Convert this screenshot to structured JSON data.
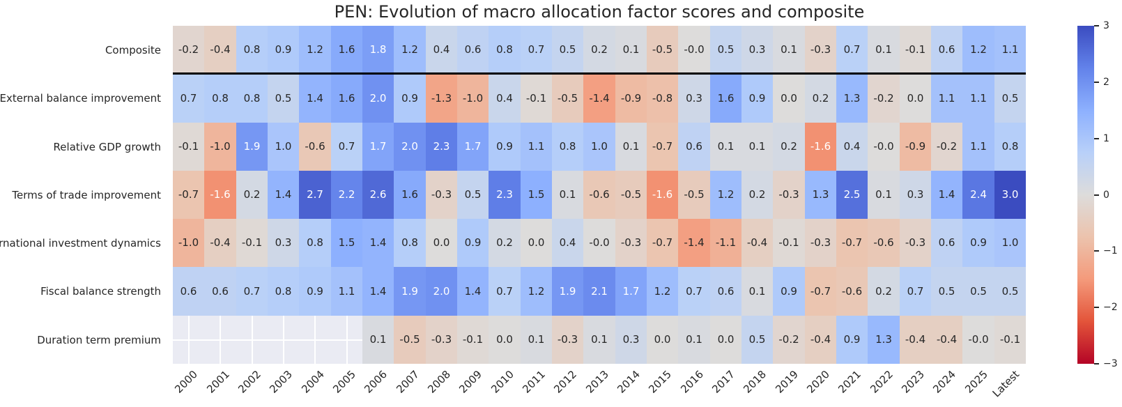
{
  "title": "PEN: Evolution of macro allocation factor scores and composite",
  "chart_data": {
    "type": "heatmap",
    "title": "PEN: Evolution of macro allocation factor scores and composite",
    "xlabel": "",
    "ylabel": "",
    "colormap": "coolwarm reversed (blue = positive, red = negative)",
    "vmin": -3,
    "vmax": 3,
    "legend_position": "right colorbar",
    "grid": false,
    "columns": [
      "2000",
      "2001",
      "2002",
      "2003",
      "2004",
      "2005",
      "2006",
      "2007",
      "2008",
      "2009",
      "2010",
      "2011",
      "2012",
      "2013",
      "2014",
      "2015",
      "2016",
      "2017",
      "2018",
      "2019",
      "2020",
      "2021",
      "2022",
      "2023",
      "2024",
      "2025",
      "Latest"
    ],
    "rows": [
      {
        "label": "Composite",
        "values": [
          -0.2,
          -0.4,
          0.8,
          0.9,
          1.2,
          1.6,
          1.8,
          1.2,
          0.4,
          0.6,
          0.8,
          0.7,
          0.5,
          0.2,
          0.1,
          -0.5,
          -0.0,
          0.5,
          0.3,
          0.1,
          -0.3,
          0.7,
          0.1,
          -0.1,
          0.6,
          1.2,
          1.1
        ]
      },
      {
        "label": "External balance improvement",
        "values": [
          0.7,
          0.8,
          0.8,
          0.5,
          1.4,
          1.6,
          2.0,
          0.9,
          -1.3,
          -1.0,
          0.4,
          -0.1,
          -0.5,
          -1.4,
          -0.9,
          -0.8,
          0.3,
          1.6,
          0.9,
          0.0,
          0.2,
          1.3,
          -0.2,
          0.0,
          1.1,
          1.1,
          0.5
        ]
      },
      {
        "label": "Relative GDP growth",
        "values": [
          -0.1,
          -1.0,
          1.9,
          1.0,
          -0.6,
          0.7,
          1.7,
          2.0,
          2.3,
          1.7,
          0.9,
          1.1,
          0.8,
          1.0,
          0.1,
          -0.7,
          0.6,
          0.1,
          0.1,
          0.2,
          -1.6,
          0.4,
          -0.0,
          -0.9,
          -0.2,
          1.1,
          0.8
        ]
      },
      {
        "label": "Terms of trade improvement",
        "values": [
          -0.7,
          -1.6,
          0.2,
          1.4,
          2.7,
          2.2,
          2.6,
          1.6,
          -0.3,
          0.5,
          2.3,
          1.5,
          0.1,
          -0.6,
          -0.5,
          -1.6,
          -0.5,
          1.2,
          0.2,
          -0.3,
          1.3,
          2.5,
          0.1,
          0.3,
          1.4,
          2.4,
          3.0
        ]
      },
      {
        "label": "International investment dynamics",
        "values": [
          -1.0,
          -0.4,
          -0.1,
          0.3,
          0.8,
          1.5,
          1.4,
          0.8,
          0.0,
          0.9,
          0.2,
          0.0,
          0.4,
          -0.0,
          -0.3,
          -0.7,
          -1.4,
          -1.1,
          -0.4,
          -0.1,
          -0.3,
          -0.7,
          -0.6,
          -0.3,
          0.6,
          0.9,
          1.0
        ]
      },
      {
        "label": "Fiscal balance strength",
        "values": [
          0.6,
          0.6,
          0.7,
          0.8,
          0.9,
          1.1,
          1.4,
          1.9,
          2.0,
          1.4,
          0.7,
          1.2,
          1.9,
          2.1,
          1.7,
          1.2,
          0.7,
          0.6,
          0.1,
          0.9,
          -0.7,
          -0.6,
          0.2,
          0.7,
          0.5,
          0.5,
          0.5
        ]
      },
      {
        "label": "Duration term premium",
        "values": [
          null,
          null,
          null,
          null,
          null,
          null,
          0.1,
          -0.5,
          -0.3,
          -0.1,
          0.0,
          0.1,
          -0.3,
          0.1,
          0.3,
          0.0,
          0.1,
          0.0,
          0.5,
          -0.2,
          -0.4,
          0.9,
          1.3,
          -0.4,
          -0.4,
          -0.0,
          -0.1
        ]
      }
    ],
    "separator_after_row_index": 0,
    "colorbar": {
      "ticks": [
        "3",
        "2",
        "1",
        "0",
        "−1",
        "−2",
        "−3"
      ],
      "tick_values": [
        3,
        2,
        1,
        0,
        -1,
        -2,
        -3
      ]
    },
    "colormap_stops": [
      {
        "value": 3,
        "color": "#3b4cc0"
      },
      {
        "value": 2.25,
        "color": "#6282ea"
      },
      {
        "value": 1.5,
        "color": "#8db0fe"
      },
      {
        "value": 0.75,
        "color": "#b8d0f9"
      },
      {
        "value": 0,
        "color": "#dddcdb"
      },
      {
        "value": -0.75,
        "color": "#ecc3ad"
      },
      {
        "value": -1.5,
        "color": "#f49a7b"
      },
      {
        "value": -2.25,
        "color": "#e3543a"
      },
      {
        "value": -3,
        "color": "#b40426"
      }
    ],
    "missing_cell_color": "#eaebf3",
    "annotation_dark_color": "#262626",
    "annotation_light_color": "#ffffff"
  }
}
